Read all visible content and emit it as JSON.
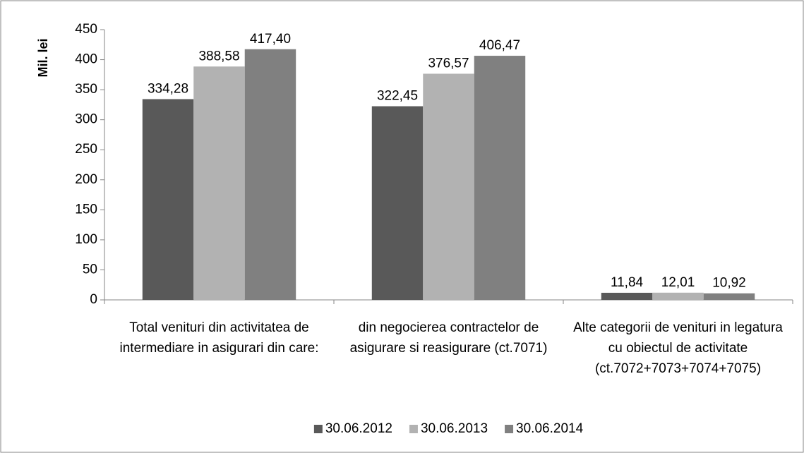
{
  "chart_data": {
    "type": "bar",
    "y_label": "Mil. lei",
    "categories": [
      "Total venituri din activitatea de intermediare in asigurari din care:",
      "din negocierea contractelor de asigurare si reasigurare (ct.7071)",
      "Alte categorii de venituri in legatura cu obiectul de activitate (ct.7072+7073+7074+7075)"
    ],
    "series": [
      {
        "name": "30.06.2012",
        "color": "#595959",
        "values": [
          334.28,
          322.45,
          11.84
        ],
        "value_labels": [
          "334,28",
          "322,45",
          "11,84"
        ]
      },
      {
        "name": "30.06.2013",
        "color": "#b2b2b2",
        "values": [
          388.58,
          376.57,
          12.01
        ],
        "value_labels": [
          "388,58",
          "376,57",
          "12,01"
        ]
      },
      {
        "name": "30.06.2014",
        "color": "#808080",
        "values": [
          417.4,
          406.47,
          10.92
        ],
        "value_labels": [
          "417,40",
          "406,47",
          "10,92"
        ]
      }
    ],
    "ylim": [
      0,
      450
    ],
    "yticks": [
      0,
      50,
      100,
      150,
      200,
      250,
      300,
      350,
      400,
      450
    ],
    "grid": false,
    "legend": "bottom"
  }
}
